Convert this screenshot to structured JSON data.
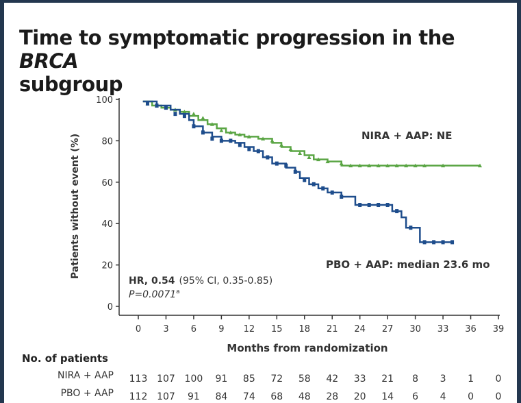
{
  "title_main": "Time to symptomatic progression in the ",
  "title_italic": "BRCA",
  "title_line2": "subgroup",
  "chart_data": {
    "type": "line",
    "subtype": "kaplan-meier",
    "xlabel": "Months from randomization",
    "ylabel": "Patients without event (%)",
    "xlim": [
      0,
      39
    ],
    "ylim": [
      0,
      100
    ],
    "xticks": [
      0,
      3,
      6,
      9,
      12,
      15,
      18,
      21,
      24,
      27,
      30,
      33,
      36,
      39
    ],
    "yticks": [
      0,
      20,
      40,
      60,
      80,
      100
    ],
    "series": [
      {
        "name": "NIRA + AAP",
        "label": "NIRA + AAP: NE",
        "color": "#5aa544",
        "x": [
          0.5,
          1.5,
          2.5,
          3.5,
          4.5,
          5.5,
          6.5,
          7.5,
          8.5,
          9.5,
          10.5,
          11.5,
          13,
          14.5,
          15.5,
          16.5,
          18,
          19,
          20.5,
          22,
          24,
          27,
          30,
          33,
          37
        ],
        "y": [
          99,
          97,
          96,
          95,
          94,
          92,
          90,
          88,
          86,
          84,
          83,
          82,
          81,
          79,
          77,
          75,
          73,
          71,
          70,
          68,
          68,
          68,
          68,
          68,
          68
        ],
        "censored": [
          [
            1,
            98
          ],
          [
            2,
            97
          ],
          [
            3,
            96
          ],
          [
            4,
            95
          ],
          [
            5,
            94
          ],
          [
            6,
            93
          ],
          [
            7,
            91
          ],
          [
            8,
            88
          ],
          [
            9,
            85
          ],
          [
            10,
            84
          ],
          [
            11,
            83
          ],
          [
            12,
            82
          ],
          [
            13.5,
            81
          ],
          [
            14.5,
            80
          ],
          [
            15.5,
            78
          ],
          [
            16.5,
            76
          ],
          [
            17.5,
            74
          ],
          [
            18.5,
            72
          ],
          [
            19.5,
            71
          ],
          [
            20.5,
            70
          ],
          [
            22,
            69
          ],
          [
            23,
            68
          ],
          [
            24,
            68
          ],
          [
            25,
            68
          ],
          [
            26,
            68
          ],
          [
            27,
            68
          ],
          [
            28,
            68
          ],
          [
            29,
            68
          ],
          [
            30,
            68
          ],
          [
            31,
            68
          ],
          [
            33,
            68
          ],
          [
            37,
            68
          ]
        ]
      },
      {
        "name": "PBO + AAP",
        "label": "PBO + AAP: median 23.6 mo",
        "color": "#1e4d8c",
        "x": [
          0.5,
          2,
          3.5,
          4.5,
          5.5,
          6,
          7,
          8,
          9,
          10.5,
          11.5,
          12.5,
          13.5,
          14.5,
          16,
          17,
          17.5,
          18.5,
          19.5,
          20.5,
          22,
          23.5,
          27.5,
          28.5,
          29,
          30.5,
          34
        ],
        "y": [
          99,
          97,
          95,
          93,
          90,
          87,
          84,
          82,
          80,
          79,
          77,
          75,
          72,
          69,
          67,
          65,
          62,
          59,
          57,
          55,
          53,
          49,
          46,
          43,
          38,
          31,
          31
        ],
        "censored": [
          [
            1,
            98
          ],
          [
            2,
            97
          ],
          [
            3,
            96
          ],
          [
            4,
            93
          ],
          [
            5,
            92
          ],
          [
            6,
            87
          ],
          [
            7,
            84
          ],
          [
            8,
            81
          ],
          [
            9,
            80
          ],
          [
            10,
            80
          ],
          [
            11,
            78
          ],
          [
            12,
            76
          ],
          [
            13,
            75
          ],
          [
            14,
            72
          ],
          [
            15,
            69
          ],
          [
            16,
            68
          ],
          [
            17,
            65
          ],
          [
            18,
            61
          ],
          [
            19,
            59
          ],
          [
            20,
            57
          ],
          [
            21,
            55
          ],
          [
            22,
            53
          ],
          [
            24,
            49
          ],
          [
            25,
            49
          ],
          [
            26,
            49
          ],
          [
            27,
            49
          ],
          [
            28,
            46
          ],
          [
            29.5,
            38
          ],
          [
            31,
            31
          ],
          [
            32,
            31
          ],
          [
            33,
            31
          ],
          [
            34,
            31
          ]
        ]
      }
    ],
    "annotation_hr_label": "HR, 0.54",
    "annotation_hr_ci": "(95% CI, 0.35-0.85)",
    "annotation_p": "P=0.0071",
    "annotation_p_mark": "a",
    "at_risk_title": "No. of patients",
    "at_risk": [
      {
        "name": "NIRA + AAP",
        "values": [
          "113",
          "107",
          "100",
          "91",
          "85",
          "72",
          "58",
          "42",
          "33",
          "21",
          "8",
          "3",
          "1",
          "0"
        ]
      },
      {
        "name": "PBO + AAP",
        "values": [
          "112",
          "107",
          "91",
          "84",
          "74",
          "68",
          "48",
          "28",
          "20",
          "14",
          "6",
          "4",
          "0",
          "0"
        ]
      }
    ]
  }
}
